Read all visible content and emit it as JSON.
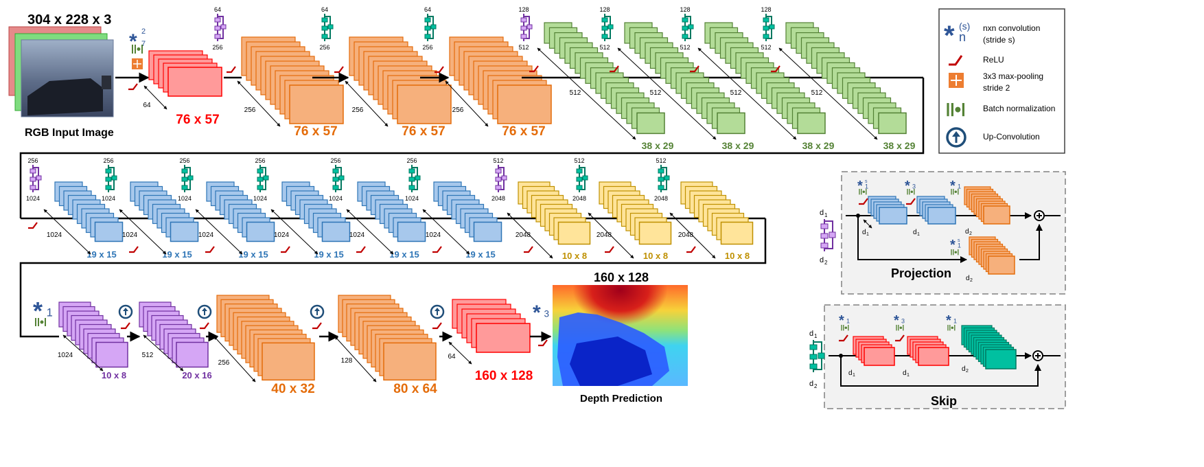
{
  "input": {
    "size_label": "304 x 228 x 3",
    "caption": "RGB Input Image",
    "first_conv_sup": "2",
    "first_conv_sub": "7"
  },
  "stages": [
    {
      "label": "76 x 57",
      "color": "red",
      "dim": "64"
    },
    {
      "label": "76 x 57",
      "color": "orange",
      "dim": "256"
    },
    {
      "label": "76 x 57",
      "color": "orange",
      "dim": "256"
    },
    {
      "label": "76 x 57",
      "color": "orange",
      "dim": "256"
    },
    {
      "label": "38 x 29",
      "color": "green",
      "dim": "512"
    },
    {
      "label": "38 x 29",
      "color": "green",
      "dim": "512"
    },
    {
      "label": "38 x 29",
      "color": "green",
      "dim": "512"
    },
    {
      "label": "38 x 29",
      "color": "green",
      "dim": "512"
    },
    {
      "label": "19 x 15",
      "color": "blue",
      "dim": "1024"
    },
    {
      "label": "19 x 15",
      "color": "blue",
      "dim": "1024"
    },
    {
      "label": "19 x 15",
      "color": "blue",
      "dim": "1024"
    },
    {
      "label": "19 x 15",
      "color": "blue",
      "dim": "1024"
    },
    {
      "label": "19 x 15",
      "color": "blue",
      "dim": "1024"
    },
    {
      "label": "19 x 15",
      "color": "blue",
      "dim": "1024"
    },
    {
      "label": "10 x 8",
      "color": "yellow",
      "dim": "2048"
    },
    {
      "label": "10 x 8",
      "color": "yellow",
      "dim": "2048"
    },
    {
      "label": "10 x 8",
      "color": "yellow",
      "dim": "2048"
    },
    {
      "label": "10 x 8",
      "color": "purple",
      "dim": "1024"
    },
    {
      "label": "20 x 16",
      "color": "purple",
      "dim": "512"
    },
    {
      "label": "40 x 32",
      "color": "orange",
      "dim": "256"
    },
    {
      "label": "80 x 64",
      "color": "orange",
      "dim": "128"
    },
    {
      "label": "160 x 128",
      "color": "red",
      "dim": "64"
    }
  ],
  "row1_blocks": [
    {
      "top": "64",
      "bottom": "256",
      "color": "purple"
    },
    {
      "top": "64",
      "bottom": "256",
      "color": "teal"
    },
    {
      "top": "64",
      "bottom": "256",
      "color": "teal"
    },
    {
      "top": "128",
      "bottom": "512",
      "color": "purple"
    },
    {
      "top": "128",
      "bottom": "512",
      "color": "teal"
    },
    {
      "top": "128",
      "bottom": "512",
      "color": "teal"
    },
    {
      "top": "128",
      "bottom": "512",
      "color": "teal"
    }
  ],
  "row2_blocks": [
    {
      "top": "256",
      "bottom": "1024",
      "color": "purple"
    },
    {
      "top": "256",
      "bottom": "1024",
      "color": "teal"
    },
    {
      "top": "256",
      "bottom": "1024",
      "color": "teal"
    },
    {
      "top": "256",
      "bottom": "1024",
      "color": "teal"
    },
    {
      "top": "256",
      "bottom": "1024",
      "color": "teal"
    },
    {
      "top": "256",
      "bottom": "1024",
      "color": "teal"
    },
    {
      "top": "512",
      "bottom": "2048",
      "color": "purple"
    },
    {
      "top": "512",
      "bottom": "2048",
      "color": "teal"
    },
    {
      "top": "512",
      "bottom": "2048",
      "color": "teal"
    }
  ],
  "output": {
    "size_label": "160 x 128",
    "caption": "Depth Prediction",
    "conv_sub": "3"
  },
  "decoder": {
    "conv_sub": "1"
  },
  "legend": {
    "conv_sub": "n",
    "conv_sup": "(s)",
    "conv_label_1": "nxn convolution",
    "conv_label_2": "(stride s)",
    "relu_label": "ReLU",
    "pool_label_1": "3x3 max-pooling",
    "pool_label_2": "stride 2",
    "bn_label": "Batch normalization",
    "upconv_label": "Up-Convolution"
  },
  "projection": {
    "title": "Projection",
    "d1": "d",
    "d1_sub": "1",
    "d2": "d",
    "d2_sub": "2",
    "conv_a": "1",
    "conv_b": "3",
    "conv_c": "1",
    "conv_proj": "1",
    "conv_sup": "s"
  },
  "skip": {
    "title": "Skip",
    "d1": "d",
    "d1_sub": "1",
    "d2": "d",
    "d2_sub": "2",
    "conv_a": "1",
    "conv_b": "3",
    "conv_c": "1"
  },
  "colors": {
    "red_fill": "#ff9a9a",
    "red_stroke": "#ff0000",
    "red_text": "#ff0000",
    "orange_fill": "#f6b07c",
    "orange_stroke": "#e46c0a",
    "orange_text": "#e46c0a",
    "green_fill": "#b3dc98",
    "green_stroke": "#538135",
    "green_text": "#548235",
    "blue_fill": "#a7c8ec",
    "blue_stroke": "#2e75b6",
    "blue_text": "#2e75b6",
    "yellow_fill": "#ffe49a",
    "yellow_stroke": "#bf9000",
    "yellow_text": "#bf9000",
    "purple_fill": "#d5a6f5",
    "purple_stroke": "#7030a0",
    "purple_text": "#7030a0",
    "teal_fill": "#00c0a0",
    "teal_stroke": "#007860",
    "conv_blue": "#2e5597",
    "relu": "#c00000",
    "bn": "#548235",
    "pool": "#ed7d31"
  }
}
